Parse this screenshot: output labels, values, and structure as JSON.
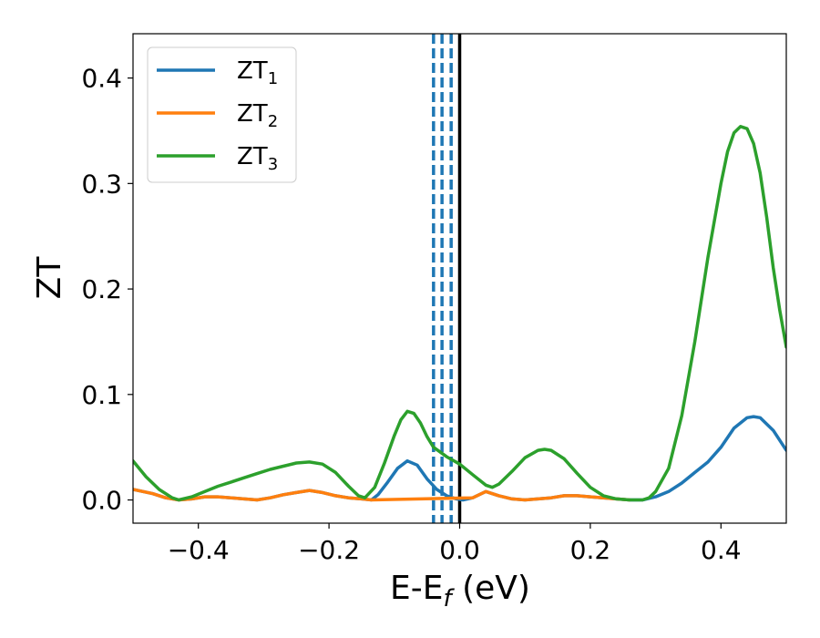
{
  "chart_data": {
    "type": "line",
    "title": "",
    "xlabel": "E-E",
    "xlabel_sub": "f",
    "xlabel_unit": " (eV)",
    "ylabel": "ZT",
    "xlim": [
      -0.5,
      0.5
    ],
    "ylim": [
      -0.022,
      0.442
    ],
    "x_ticks": [
      -0.4,
      -0.2,
      0.0,
      0.2,
      0.4
    ],
    "x_tick_labels": [
      "−0.4",
      "−0.2",
      "0.0",
      "0.2",
      "0.4"
    ],
    "y_ticks": [
      0.0,
      0.1,
      0.2,
      0.3,
      0.4
    ],
    "y_tick_labels": [
      "0.0",
      "0.1",
      "0.2",
      "0.3",
      "0.4"
    ],
    "grid": false,
    "legend_position": "top-left",
    "fermi_line": {
      "x": 0.0,
      "color": "#000000"
    },
    "dashed_lines": {
      "x": [
        -0.04,
        -0.027,
        -0.013
      ],
      "color": "#1f77b4"
    },
    "series": [
      {
        "name": "ZT",
        "name_sub": "1",
        "color": "#1f77b4",
        "points": [
          [
            -0.5,
            0.01
          ],
          [
            -0.47,
            0.006
          ],
          [
            -0.45,
            0.002
          ],
          [
            -0.43,
            0.0
          ],
          [
            -0.41,
            0.001
          ],
          [
            -0.39,
            0.003
          ],
          [
            -0.37,
            0.003
          ],
          [
            -0.35,
            0.002
          ],
          [
            -0.33,
            0.001
          ],
          [
            -0.31,
            0.0
          ],
          [
            -0.29,
            0.002
          ],
          [
            -0.27,
            0.005
          ],
          [
            -0.25,
            0.007
          ],
          [
            -0.23,
            0.009
          ],
          [
            -0.21,
            0.007
          ],
          [
            -0.19,
            0.004
          ],
          [
            -0.17,
            0.002
          ],
          [
            -0.15,
            0.001
          ],
          [
            -0.135,
            0.0
          ],
          [
            -0.125,
            0.005
          ],
          [
            -0.11,
            0.017
          ],
          [
            -0.095,
            0.03
          ],
          [
            -0.08,
            0.037
          ],
          [
            -0.065,
            0.033
          ],
          [
            -0.05,
            0.02
          ],
          [
            -0.035,
            0.01
          ],
          [
            -0.02,
            0.004
          ],
          [
            -0.005,
            0.001
          ],
          [
            0.005,
            0.0
          ],
          [
            0.02,
            0.002
          ],
          [
            0.04,
            0.008
          ],
          [
            0.06,
            0.004
          ],
          [
            0.08,
            0.001
          ],
          [
            0.1,
            0.0
          ],
          [
            0.12,
            0.001
          ],
          [
            0.14,
            0.002
          ],
          [
            0.16,
            0.004
          ],
          [
            0.18,
            0.004
          ],
          [
            0.2,
            0.003
          ],
          [
            0.22,
            0.002
          ],
          [
            0.24,
            0.001
          ],
          [
            0.26,
            0.0
          ],
          [
            0.28,
            0.0
          ],
          [
            0.3,
            0.003
          ],
          [
            0.32,
            0.008
          ],
          [
            0.34,
            0.016
          ],
          [
            0.36,
            0.026
          ],
          [
            0.38,
            0.036
          ],
          [
            0.4,
            0.05
          ],
          [
            0.42,
            0.068
          ],
          [
            0.44,
            0.078
          ],
          [
            0.45,
            0.079
          ],
          [
            0.46,
            0.078
          ],
          [
            0.48,
            0.066
          ],
          [
            0.5,
            0.047
          ]
        ]
      },
      {
        "name": "ZT",
        "name_sub": "2",
        "color": "#ff7f0e",
        "points": [
          [
            -0.5,
            0.01
          ],
          [
            -0.47,
            0.006
          ],
          [
            -0.45,
            0.002
          ],
          [
            -0.43,
            0.0
          ],
          [
            -0.41,
            0.001
          ],
          [
            -0.39,
            0.003
          ],
          [
            -0.37,
            0.003
          ],
          [
            -0.35,
            0.002
          ],
          [
            -0.33,
            0.001
          ],
          [
            -0.31,
            0.0
          ],
          [
            -0.29,
            0.002
          ],
          [
            -0.27,
            0.005
          ],
          [
            -0.25,
            0.007
          ],
          [
            -0.23,
            0.009
          ],
          [
            -0.21,
            0.007
          ],
          [
            -0.19,
            0.004
          ],
          [
            -0.17,
            0.002
          ],
          [
            -0.15,
            0.001
          ],
          [
            -0.135,
            0.0
          ],
          [
            0.02,
            0.002
          ],
          [
            0.04,
            0.008
          ],
          [
            0.06,
            0.004
          ],
          [
            0.08,
            0.001
          ],
          [
            0.1,
            0.0
          ],
          [
            0.12,
            0.001
          ],
          [
            0.14,
            0.002
          ],
          [
            0.16,
            0.004
          ],
          [
            0.18,
            0.004
          ],
          [
            0.2,
            0.003
          ],
          [
            0.22,
            0.002
          ],
          [
            0.24,
            0.001
          ],
          [
            0.26,
            0.0
          ]
        ]
      },
      {
        "name": "ZT",
        "name_sub": "3",
        "color": "#2ca02c",
        "points": [
          [
            -0.5,
            0.037
          ],
          [
            -0.48,
            0.022
          ],
          [
            -0.46,
            0.01
          ],
          [
            -0.44,
            0.002
          ],
          [
            -0.43,
            0.0
          ],
          [
            -0.41,
            0.003
          ],
          [
            -0.39,
            0.008
          ],
          [
            -0.37,
            0.013
          ],
          [
            -0.35,
            0.017
          ],
          [
            -0.33,
            0.021
          ],
          [
            -0.31,
            0.025
          ],
          [
            -0.29,
            0.029
          ],
          [
            -0.27,
            0.032
          ],
          [
            -0.25,
            0.035
          ],
          [
            -0.23,
            0.036
          ],
          [
            -0.21,
            0.034
          ],
          [
            -0.19,
            0.026
          ],
          [
            -0.17,
            0.013
          ],
          [
            -0.155,
            0.004
          ],
          [
            -0.145,
            0.002
          ],
          [
            -0.13,
            0.012
          ],
          [
            -0.115,
            0.035
          ],
          [
            -0.1,
            0.061
          ],
          [
            -0.09,
            0.076
          ],
          [
            -0.08,
            0.084
          ],
          [
            -0.07,
            0.082
          ],
          [
            -0.06,
            0.073
          ],
          [
            -0.05,
            0.06
          ],
          [
            -0.04,
            0.05
          ],
          [
            -0.02,
            0.041
          ],
          [
            0.0,
            0.034
          ],
          [
            0.02,
            0.024
          ],
          [
            0.04,
            0.014
          ],
          [
            0.05,
            0.012
          ],
          [
            0.06,
            0.015
          ],
          [
            0.08,
            0.027
          ],
          [
            0.1,
            0.04
          ],
          [
            0.12,
            0.047
          ],
          [
            0.13,
            0.048
          ],
          [
            0.14,
            0.047
          ],
          [
            0.16,
            0.039
          ],
          [
            0.18,
            0.025
          ],
          [
            0.2,
            0.012
          ],
          [
            0.22,
            0.004
          ],
          [
            0.24,
            0.001
          ],
          [
            0.26,
            0.0
          ],
          [
            0.28,
            0.0
          ],
          [
            0.29,
            0.002
          ],
          [
            0.3,
            0.008
          ],
          [
            0.32,
            0.03
          ],
          [
            0.34,
            0.08
          ],
          [
            0.36,
            0.15
          ],
          [
            0.38,
            0.23
          ],
          [
            0.4,
            0.3
          ],
          [
            0.41,
            0.33
          ],
          [
            0.42,
            0.348
          ],
          [
            0.43,
            0.354
          ],
          [
            0.44,
            0.352
          ],
          [
            0.45,
            0.338
          ],
          [
            0.46,
            0.31
          ],
          [
            0.47,
            0.268
          ],
          [
            0.48,
            0.22
          ],
          [
            0.49,
            0.18
          ],
          [
            0.5,
            0.145
          ]
        ]
      }
    ]
  }
}
